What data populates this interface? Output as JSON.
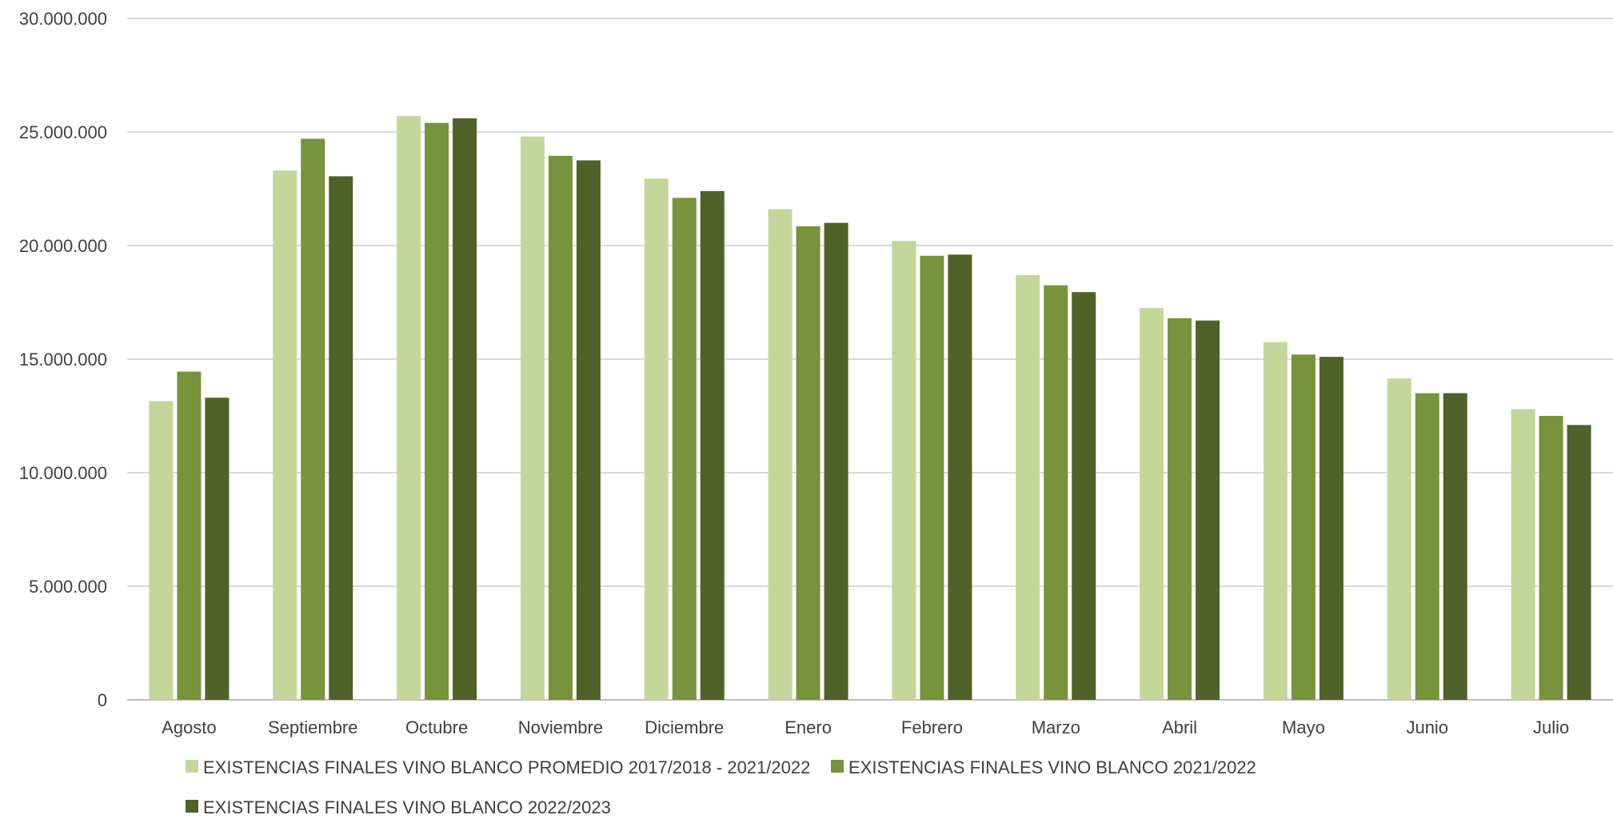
{
  "chart_data": {
    "type": "bar",
    "categories": [
      "Agosto",
      "Septiembre",
      "Octubre",
      "Noviembre",
      "Diciembre",
      "Enero",
      "Febrero",
      "Marzo",
      "Abril",
      "Mayo",
      "Junio",
      "Julio"
    ],
    "series": [
      {
        "name": "EXISTENCIAS FINALES VINO BLANCO PROMEDIO 2017/2018 - 2021/2022",
        "color": "#c4d79b",
        "values": [
          13150000,
          23300000,
          25700000,
          24800000,
          22950000,
          21600000,
          20200000,
          18700000,
          17250000,
          15750000,
          14150000,
          12800000
        ]
      },
      {
        "name": "EXISTENCIAS FINALES VINO BLANCO 2021/2022",
        "color": "#77933c",
        "values": [
          14450000,
          24700000,
          25400000,
          23950000,
          22100000,
          20850000,
          19550000,
          18250000,
          16800000,
          15200000,
          13500000,
          12500000
        ]
      },
      {
        "name": "EXISTENCIAS FINALES VINO BLANCO 2022/2023",
        "color": "#4f6228",
        "values": [
          13300000,
          23050000,
          25600000,
          23750000,
          22400000,
          21000000,
          19600000,
          17950000,
          16700000,
          15100000,
          13500000,
          12100000
        ]
      }
    ],
    "yticks": [
      "0",
      "5.000.000",
      "10.000.000",
      "15.000.000",
      "20.000.000",
      "25.000.000",
      "30.000.000"
    ],
    "ylim": [
      0,
      30000000
    ],
    "grid": true,
    "legend_position": "bottom-left",
    "title": "",
    "xlabel": "",
    "ylabel": ""
  }
}
